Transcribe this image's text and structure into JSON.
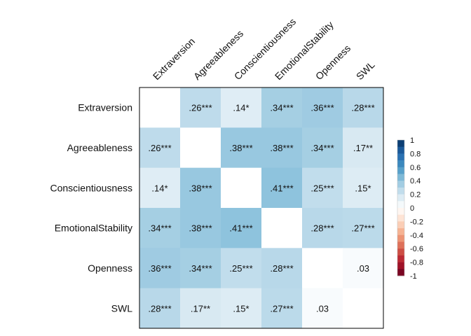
{
  "chart_data": {
    "type": "heatmap",
    "variables": [
      "Extraversion",
      "Agreeableness",
      "Conscientiousness",
      "EmotionalStability",
      "Openness",
      "SWL"
    ],
    "values": [
      [
        null,
        0.26,
        0.14,
        0.34,
        0.36,
        0.28
      ],
      [
        0.26,
        null,
        0.38,
        0.38,
        0.34,
        0.17
      ],
      [
        0.14,
        0.38,
        null,
        0.41,
        0.25,
        0.15
      ],
      [
        0.34,
        0.38,
        0.41,
        null,
        0.28,
        0.27
      ],
      [
        0.36,
        0.34,
        0.25,
        0.28,
        null,
        0.03
      ],
      [
        0.28,
        0.17,
        0.15,
        0.27,
        0.03,
        null
      ]
    ],
    "labels": [
      [
        "",
        ".26***",
        ".14*",
        ".34***",
        ".36***",
        ".28***"
      ],
      [
        ".26***",
        "",
        ".38***",
        ".38***",
        ".34***",
        ".17**"
      ],
      [
        ".14*",
        ".38***",
        "",
        ".41***",
        ".25***",
        ".15*"
      ],
      [
        ".34***",
        ".38***",
        ".41***",
        "",
        ".28***",
        ".27***"
      ],
      [
        ".36***",
        ".34***",
        ".25***",
        ".28***",
        "",
        ".03"
      ],
      [
        ".28***",
        ".17**",
        ".15*",
        ".27***",
        ".03",
        ""
      ]
    ],
    "color_scale": {
      "range": [
        -1,
        1
      ],
      "ticks": [
        "1",
        "0.8",
        "0.6",
        "0.4",
        "0.2",
        "0",
        "-0.2",
        "-0.4",
        "-0.6",
        "-0.8",
        "-1"
      ],
      "colors": {
        "-1": "#67001f",
        "-0.8": "#b2182b",
        "-0.6": "#d6604d",
        "-0.4": "#f4a582",
        "-0.2": "#fddbc7",
        "0": "#ffffff",
        "0.2": "#d1e5f0",
        "0.4": "#92c5de",
        "0.6": "#4393c3",
        "0.8": "#2166ac",
        "1": "#053061"
      }
    },
    "legend_position": "right",
    "diagonal": "blank"
  }
}
